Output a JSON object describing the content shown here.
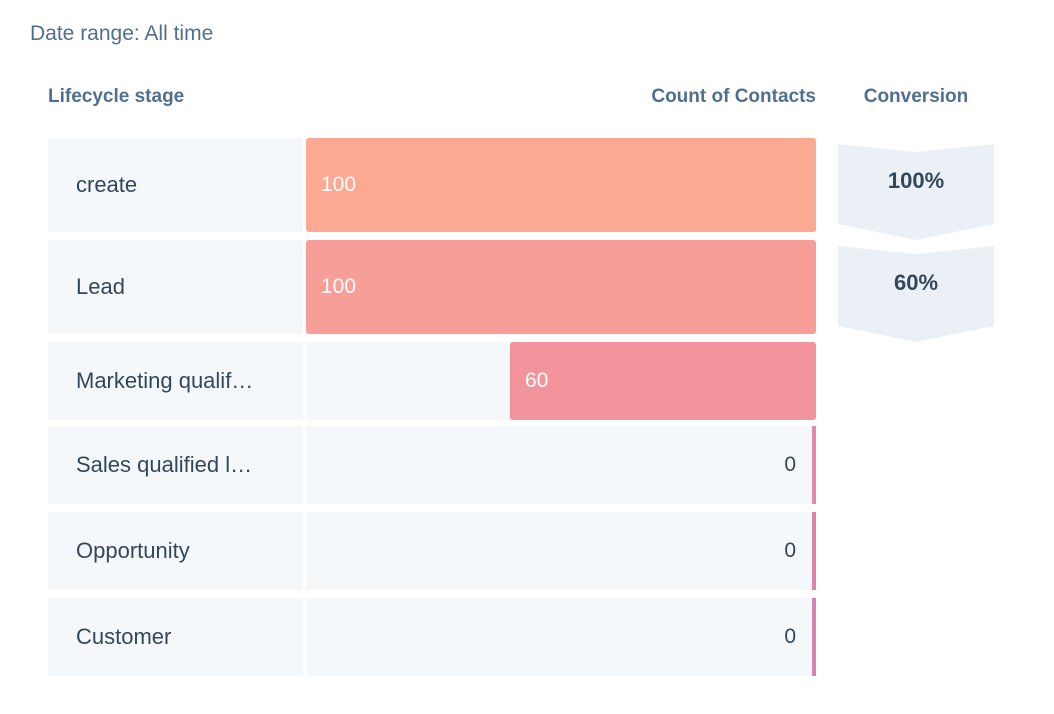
{
  "date_range": "Date range: All time",
  "headers": {
    "stage": "Lifecycle stage",
    "count": "Count of Contacts",
    "conversion": "Conversion"
  },
  "chart_data": {
    "type": "bar",
    "orientation": "horizontal",
    "xlabel": "Count of Contacts",
    "ylabel": "Lifecycle stage",
    "categories": [
      "create",
      "Lead",
      "Marketing qualif…",
      "Sales qualified l…",
      "Opportunity",
      "Customer"
    ],
    "values": [
      100,
      100,
      60,
      0,
      0,
      0
    ],
    "bar_colors": [
      "#fca993",
      "#f89e98",
      "#f3939b",
      "#e589a8",
      "#de84ac",
      "#d882b0"
    ],
    "xlim": [
      0,
      100
    ],
    "conversions": [
      "100%",
      "60%"
    ]
  }
}
